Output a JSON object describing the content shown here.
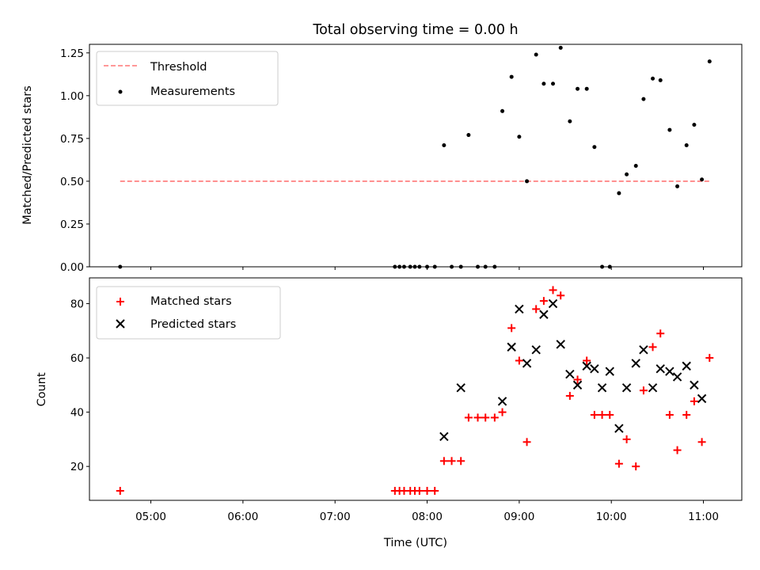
{
  "chart_data": [
    {
      "type": "scatter",
      "title": "Total observing time = 0.00 h",
      "xlabel": "",
      "ylabel": "Matched/Predicted stars",
      "x_tick_labels": [],
      "y_ticks": [
        0.0,
        0.25,
        0.5,
        0.75,
        1.0,
        1.25
      ],
      "y_tick_labels": [
        "0.00",
        "0.25",
        "0.50",
        "0.75",
        "1.00",
        "1.25"
      ],
      "ylim": [
        0.0,
        1.3
      ],
      "xlim": [
        "04:20",
        "11:25"
      ],
      "grid": false,
      "legend": {
        "placement": "upper-left",
        "entries": [
          "Threshold",
          "Measurements"
        ]
      },
      "threshold": {
        "name": "Threshold",
        "y": 0.5,
        "x": [
          "04:40",
          "11:05"
        ],
        "color": "#ff7777",
        "style": "dashed"
      },
      "series": [
        {
          "name": "Measurements",
          "marker": "dot",
          "color": "#000000",
          "x": [
            "04:40",
            "07:39",
            "07:42",
            "07:45",
            "07:49",
            "07:52",
            "07:55",
            "08:00",
            "08:05",
            "08:11",
            "08:16",
            "08:22",
            "08:27",
            "08:33",
            "08:38",
            "08:44",
            "08:49",
            "08:55",
            "09:00",
            "09:05",
            "09:11",
            "09:16",
            "09:22",
            "09:27",
            "09:33",
            "09:38",
            "09:44",
            "09:49",
            "09:54",
            "09:59",
            "10:05",
            "10:10",
            "10:16",
            "10:21",
            "10:27",
            "10:32",
            "10:38",
            "10:43",
            "10:49",
            "10:54",
            "10:59",
            "11:04"
          ],
          "y": [
            0.0,
            0.0,
            0.0,
            0.0,
            0.0,
            0.0,
            0.0,
            0.0,
            0.0,
            0.71,
            0.0,
            0.0,
            0.77,
            0.0,
            0.0,
            0.0,
            0.91,
            1.11,
            0.76,
            0.5,
            1.24,
            1.07,
            1.07,
            1.28,
            0.85,
            1.04,
            1.04,
            0.7,
            0.0,
            0.0,
            0.43,
            0.54,
            0.59,
            0.98,
            1.1,
            1.09,
            0.8,
            0.47,
            0.71,
            0.83,
            0.51,
            1.2
          ]
        }
      ]
    },
    {
      "type": "scatter",
      "title": "",
      "xlabel": "Time (UTC)",
      "ylabel": "Count",
      "x_ticks": [
        "05:00",
        "06:00",
        "07:00",
        "08:00",
        "09:00",
        "10:00",
        "11:00"
      ],
      "y_ticks": [
        20,
        40,
        60,
        80
      ],
      "y_tick_labels": [
        "20",
        "40",
        "60",
        "80"
      ],
      "ylim": [
        7.5,
        89.5
      ],
      "xlim": [
        "04:20",
        "11:25"
      ],
      "grid": false,
      "legend": {
        "placement": "upper-left",
        "entries": [
          "Matched stars",
          "Predicted stars"
        ]
      },
      "series": [
        {
          "name": "Matched stars",
          "marker": "plus",
          "color": "#ff0000",
          "x": [
            "04:40",
            "07:39",
            "07:42",
            "07:45",
            "07:49",
            "07:52",
            "07:55",
            "08:00",
            "08:05",
            "08:11",
            "08:16",
            "08:22",
            "08:27",
            "08:33",
            "08:38",
            "08:44",
            "08:49",
            "08:55",
            "09:00",
            "09:05",
            "09:11",
            "09:16",
            "09:22",
            "09:27",
            "09:33",
            "09:38",
            "09:44",
            "09:49",
            "09:54",
            "09:59",
            "10:05",
            "10:10",
            "10:16",
            "10:21",
            "10:27",
            "10:32",
            "10:38",
            "10:43",
            "10:49",
            "10:54",
            "10:59",
            "11:04"
          ],
          "y": [
            11,
            11,
            11,
            11,
            11,
            11,
            11,
            11,
            11,
            22,
            22,
            22,
            38,
            38,
            38,
            38,
            40,
            71,
            59,
            29,
            78,
            81,
            85,
            83,
            46,
            52,
            59,
            39,
            39,
            39,
            21,
            30,
            20,
            48,
            64,
            69,
            39,
            26,
            39,
            44,
            29,
            60
          ]
        },
        {
          "name": "Predicted stars",
          "marker": "x",
          "color": "#000000",
          "x": [
            "08:11",
            "08:22",
            "08:49",
            "08:55",
            "09:00",
            "09:05",
            "09:11",
            "09:16",
            "09:22",
            "09:27",
            "09:33",
            "09:38",
            "09:44",
            "09:49",
            "09:54",
            "09:59",
            "10:05",
            "10:10",
            "10:16",
            "10:21",
            "10:27",
            "10:32",
            "10:38",
            "10:43",
            "10:49",
            "10:54",
            "10:59"
          ],
          "y": [
            31,
            49,
            44,
            64,
            78,
            58,
            63,
            76,
            80,
            65,
            54,
            50,
            57,
            56,
            49,
            55,
            34,
            49,
            58,
            63,
            49,
            56,
            55,
            53,
            57,
            50,
            45
          ]
        }
      ]
    }
  ]
}
